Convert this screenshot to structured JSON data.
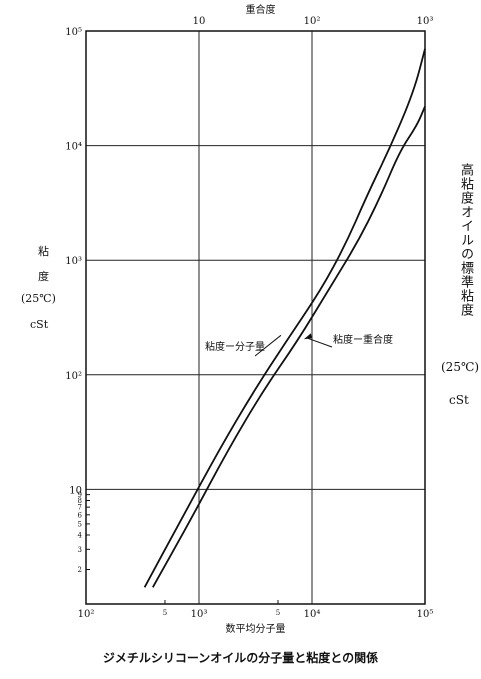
{
  "chart_data": {
    "type": "line",
    "xlabel": "数平均分子量",
    "x2label": "重合度",
    "ylabel_lines": [
      "粘",
      "度",
      "(25℃)",
      "cSt"
    ],
    "right_title": "高粘度オイルの標準粘度",
    "right_unit": "(25℃)",
    "right_unit2": "cSt",
    "caption": "ジメチルシリコーンオイルの分子量と粘度との関係",
    "x_scale": "log",
    "y_scale": "log",
    "xlim": [
      100,
      100000
    ],
    "ylim": [
      1,
      100000
    ],
    "x2lim": [
      1,
      1000
    ],
    "grid": true,
    "x_ticks": [
      {
        "value": 100,
        "label": "10²"
      },
      {
        "value": 1000,
        "label": "10³"
      },
      {
        "value": 10000,
        "label": "10⁴"
      },
      {
        "value": 100000,
        "label": "10⁵"
      }
    ],
    "x_minor": [
      {
        "value": 500,
        "label": "5"
      },
      {
        "value": 5000,
        "label": "5"
      }
    ],
    "x2_ticks": [
      {
        "value": 10,
        "label": "10"
      },
      {
        "value": 100,
        "label": "10²"
      },
      {
        "value": 1000,
        "label": "10³"
      }
    ],
    "y_ticks": [
      {
        "value": 10,
        "label": "10"
      },
      {
        "value": 100,
        "label": "10²"
      },
      {
        "value": 1000,
        "label": "10³"
      },
      {
        "value": 10000,
        "label": "10⁴"
      },
      {
        "value": 100000,
        "label": "10⁵"
      }
    ],
    "y_minor": [
      {
        "value": 2,
        "label": "2"
      },
      {
        "value": 3,
        "label": "3"
      },
      {
        "value": 4,
        "label": "4"
      },
      {
        "value": 5,
        "label": "5"
      },
      {
        "value": 6,
        "label": "6"
      },
      {
        "value": 7,
        "label": "7"
      },
      {
        "value": 8,
        "label": "8"
      },
      {
        "value": 9,
        "label": "9"
      }
    ],
    "series": [
      {
        "name": "粘度ー分子量",
        "x": [
          330,
          700,
          1500,
          3000,
          6000,
          12000,
          20000,
          30000,
          50000,
          80000,
          100000
        ],
        "y": [
          1.4,
          5.5,
          22,
          70,
          200,
          550,
          1400,
          3500,
          10000,
          30000,
          70000
        ]
      },
      {
        "name": "粘度ー重合度",
        "x": [
          390,
          850,
          1800,
          3600,
          7500,
          14000,
          25000,
          40000,
          60000,
          85000,
          100000
        ],
        "y": [
          1.4,
          5.5,
          22,
          70,
          200,
          550,
          1400,
          3500,
          9000,
          15000,
          22000
        ]
      }
    ]
  }
}
